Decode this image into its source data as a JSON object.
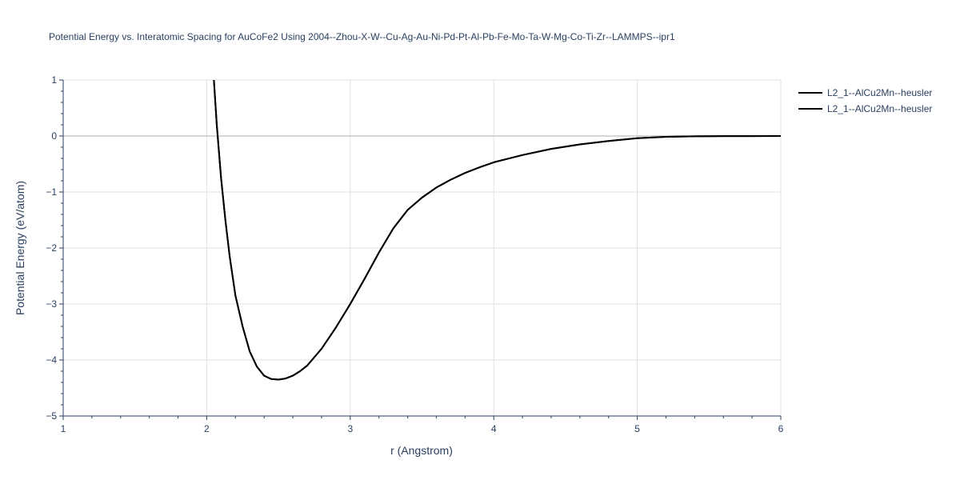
{
  "chart_data": {
    "type": "line",
    "title": "Potential Energy vs. Interatomic Spacing for AuCoFe2 Using 2004--Zhou-X-W--Cu-Ag-Au-Ni-Pd-Pt-Al-Pb-Fe-Mo-Ta-W-Mg-Co-Ti-Zr--LAMMPS--ipr1",
    "xlabel": "r (Angstrom)",
    "ylabel": "Potential Energy (eV/atom)",
    "xlim": [
      1,
      6
    ],
    "ylim": [
      -5,
      1
    ],
    "x_ticks": [
      "1",
      "2",
      "3",
      "4",
      "5",
      "6"
    ],
    "y_ticks": [
      "1",
      "0",
      "−1",
      "−2",
      "−3",
      "−4",
      "−5"
    ],
    "grid": true,
    "legend_position": "top-right",
    "series": [
      {
        "name": "L2_1--AlCu2Mn--heusler",
        "color": "#000000",
        "x": [
          2.05,
          2.07,
          2.1,
          2.13,
          2.16,
          2.2,
          2.25,
          2.3,
          2.35,
          2.4,
          2.45,
          2.5,
          2.55,
          2.6,
          2.65,
          2.7,
          2.8,
          2.9,
          3.0,
          3.1,
          3.2,
          3.3,
          3.4,
          3.5,
          3.6,
          3.7,
          3.8,
          3.9,
          4.0,
          4.2,
          4.4,
          4.6,
          4.8,
          5.0,
          5.2,
          5.4,
          5.6,
          5.8,
          6.0
        ],
        "y": [
          1.0,
          0.2,
          -0.75,
          -1.5,
          -2.15,
          -2.85,
          -3.4,
          -3.85,
          -4.12,
          -4.28,
          -4.34,
          -4.35,
          -4.33,
          -4.28,
          -4.2,
          -4.1,
          -3.8,
          -3.42,
          -3.0,
          -2.55,
          -2.08,
          -1.65,
          -1.32,
          -1.1,
          -0.92,
          -0.78,
          -0.66,
          -0.56,
          -0.47,
          -0.34,
          -0.23,
          -0.15,
          -0.09,
          -0.04,
          -0.015,
          -0.005,
          -0.002,
          -0.001,
          0.0
        ]
      },
      {
        "name": "L2_1--AlCu2Mn--heusler",
        "color": "#000000",
        "x": [
          2.05,
          2.07,
          2.1,
          2.13,
          2.16,
          2.2,
          2.25,
          2.3,
          2.35,
          2.4,
          2.45,
          2.5,
          2.55,
          2.6,
          2.65,
          2.7,
          2.8,
          2.9,
          3.0,
          3.1,
          3.2,
          3.3,
          3.4,
          3.5,
          3.6,
          3.7,
          3.8,
          3.9,
          4.0,
          4.2,
          4.4,
          4.6,
          4.8,
          5.0,
          5.2,
          5.4,
          5.6,
          5.8,
          6.0
        ],
        "y": [
          1.0,
          0.2,
          -0.75,
          -1.5,
          -2.15,
          -2.85,
          -3.4,
          -3.85,
          -4.12,
          -4.28,
          -4.34,
          -4.35,
          -4.33,
          -4.28,
          -4.2,
          -4.1,
          -3.8,
          -3.42,
          -3.0,
          -2.55,
          -2.08,
          -1.65,
          -1.32,
          -1.1,
          -0.92,
          -0.78,
          -0.66,
          -0.56,
          -0.47,
          -0.34,
          -0.23,
          -0.15,
          -0.09,
          -0.04,
          -0.015,
          -0.005,
          -0.002,
          -0.001,
          0.0
        ]
      }
    ]
  }
}
